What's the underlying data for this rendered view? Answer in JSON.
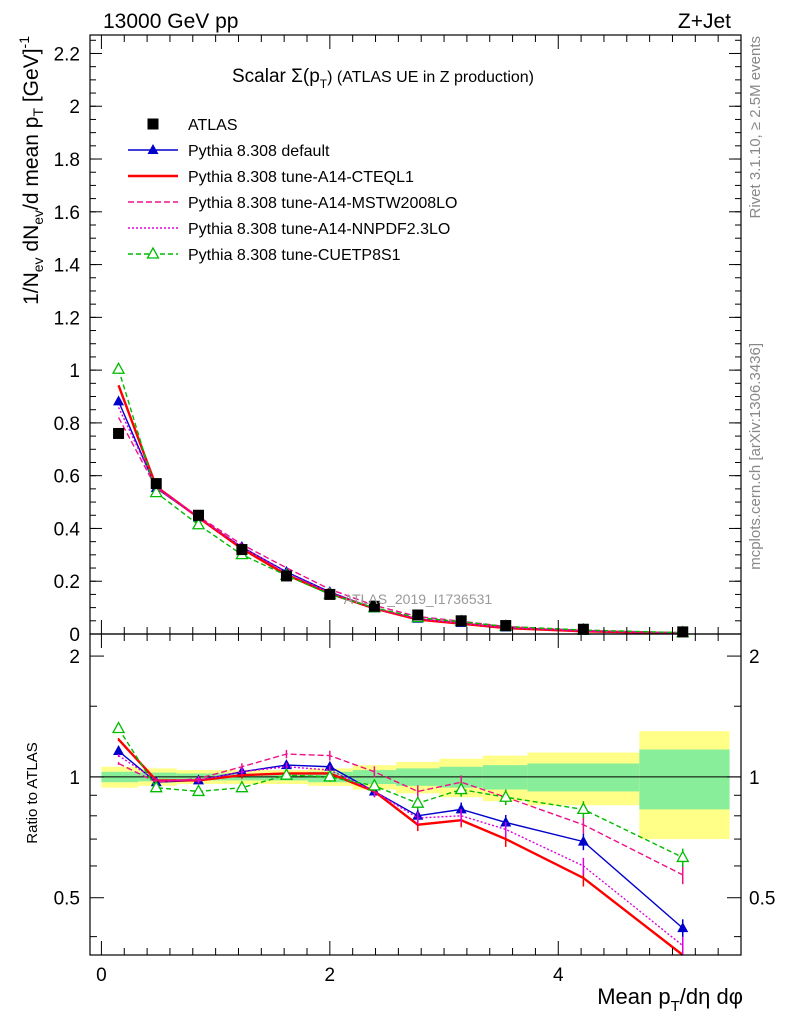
{
  "header": {
    "left": "13000 GeV pp",
    "right": "Z+Jet"
  },
  "side_labels": {
    "rivet": "Rivet 3.1.10, ≥ 2.5M events",
    "mcplots": "mcplots.cern.ch [arXiv:1306.3436]"
  },
  "chart_data": {
    "type": "line",
    "title": "Scalar Σ(p_T) (ATLAS UE in Z production)",
    "title_parts": {
      "main": "Scalar Σ(p",
      "sub": "T",
      "tail": ") (ATLAS UE in Z production)"
    },
    "watermark": "ATLAS_2019_I1736531",
    "xlabel": "Mean p_T/dη dφ",
    "xlabel_parts": {
      "main": "Mean p",
      "sub": "T",
      "tail": "/dη dφ"
    },
    "ylabel": "1/N_ev dN_ev/d mean p_T [GeV]^-1",
    "ylabel_parts": {
      "a": "1/N",
      "a_sub": "ev",
      "b": " dN",
      "b_sub": "ev",
      "c": "/d mean p",
      "c_sub": "T",
      "d": " [GeV]",
      "d_sup": "-1"
    },
    "ratio_ylabel": "Ratio to ATLAS",
    "xlim": [
      -0.1,
      5.6
    ],
    "ylim": [
      0,
      2.27
    ],
    "ratio_ylim": [
      0.36,
      2.27
    ],
    "ratio_scale": "log",
    "grid": false,
    "legend_position": "top-left",
    "x_ticks": [
      "0",
      "2",
      "4"
    ],
    "y_ticks": [
      "0",
      "0.2",
      "0.4",
      "0.6",
      "0.8",
      "1",
      "1.2",
      "1.4",
      "1.6",
      "1.8",
      "2",
      "2.2"
    ],
    "ratio_ticks": [
      "0.5",
      "1",
      "2"
    ],
    "x": [
      0.15,
      0.48,
      0.85,
      1.23,
      1.62,
      2.0,
      2.39,
      2.77,
      3.15,
      3.54,
      4.22,
      5.09
    ],
    "atlas": {
      "name": "ATLAS",
      "values": [
        0.76,
        0.57,
        0.45,
        0.32,
        0.22,
        0.15,
        0.105,
        0.072,
        0.05,
        0.032,
        0.018,
        0.008
      ],
      "syst_band_edges": [
        0.0,
        0.32,
        0.66,
        1.04,
        1.43,
        1.81,
        2.2,
        2.58,
        2.96,
        3.34,
        3.73,
        4.71,
        5.5
      ],
      "syst_band_halfwidth": [
        0.06,
        0.05,
        0.04,
        0.04,
        0.04,
        0.05,
        0.07,
        0.09,
        0.11,
        0.13,
        0.15,
        0.3
      ],
      "stat_band_halfwidth": [
        0.03,
        0.025,
        0.02,
        0.02,
        0.02,
        0.03,
        0.04,
        0.05,
        0.06,
        0.07,
        0.08,
        0.17
      ]
    },
    "series": [
      {
        "name": "Pythia 8.308 default",
        "color": "#0000cc",
        "dash": "",
        "marker": "triangle-filled",
        "ratio": [
          1.16,
          0.97,
          0.98,
          1.03,
          1.07,
          1.06,
          0.92,
          0.8,
          0.83,
          0.77,
          0.69,
          0.42
        ]
      },
      {
        "name": "Pythia 8.308 tune-A14-CTEQL1",
        "color": "#ff0000",
        "dash": "",
        "marker": "none",
        "ratio": [
          1.24,
          0.98,
          0.98,
          1.01,
          1.02,
          1.02,
          0.92,
          0.76,
          0.78,
          0.7,
          0.56,
          0.36
        ]
      },
      {
        "name": "Pythia 8.308 tune-A14-MSTW2008LO",
        "color": "#ee1188",
        "dash": "6,3",
        "marker": "none",
        "ratio": [
          1.08,
          0.97,
          0.99,
          1.06,
          1.14,
          1.13,
          1.03,
          0.92,
          0.97,
          0.89,
          0.76,
          0.57
        ]
      },
      {
        "name": "Pythia 8.308 tune-A14-NNPDF2.3LO",
        "color": "#dd00dd",
        "dash": "2,2",
        "marker": "none",
        "ratio": [
          1.13,
          0.98,
          0.98,
          1.03,
          1.06,
          1.04,
          0.92,
          0.79,
          0.8,
          0.74,
          0.6,
          0.38
        ]
      },
      {
        "name": "Pythia 8.308 tune-CUETP8S1",
        "color": "#00bb00",
        "dash": "5,3",
        "marker": "triangle-open",
        "ratio": [
          1.32,
          0.94,
          0.92,
          0.94,
          1.01,
          1.0,
          0.95,
          0.86,
          0.93,
          0.89,
          0.83,
          0.63
        ]
      }
    ]
  }
}
